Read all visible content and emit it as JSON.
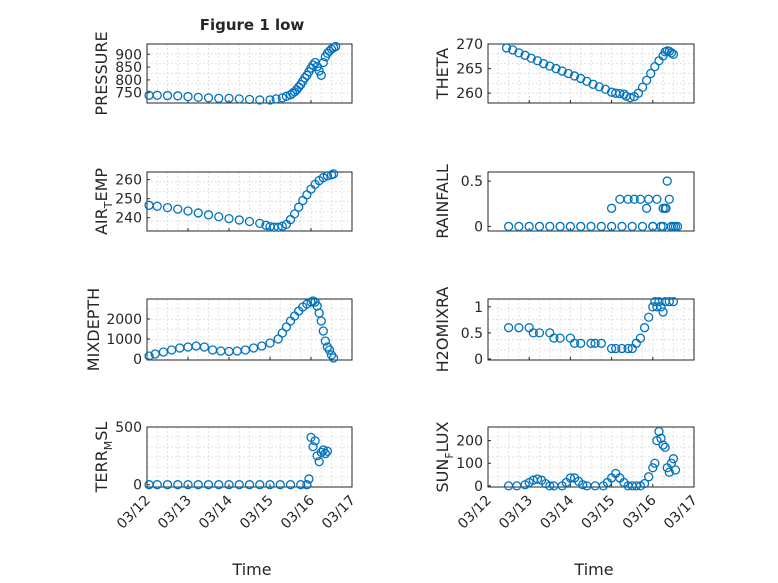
{
  "figure": {
    "title": "Figure 1 low",
    "xlabel": "Time"
  },
  "colors": {
    "marker": "#0072bd",
    "axis": "#262626",
    "grid": "#e0e0e0"
  },
  "x_ticks": [
    "03/12",
    "03/13",
    "03/14",
    "03/15",
    "03/16",
    "03/17"
  ],
  "chart_data": [
    {
      "type": "scatter",
      "id": "pressure",
      "ylabel": "PRESSURE",
      "ylabel_sub": "",
      "xlim": [
        0,
        5
      ],
      "ylim": [
        710,
        940
      ],
      "yticks": [
        750,
        800,
        850,
        900
      ],
      "grid": true,
      "series": [
        {
          "x": [
            0.05,
            0.25,
            0.5,
            0.75,
            1.0,
            1.25,
            1.5,
            1.75,
            2.0,
            2.25,
            2.5,
            2.75,
            3.0,
            3.15,
            3.3,
            3.4,
            3.5,
            3.55,
            3.6,
            3.65,
            3.7,
            3.75,
            3.8,
            3.85,
            3.9,
            3.95,
            4.0,
            4.05,
            4.1,
            4.15,
            4.2,
            4.25,
            4.3,
            4.35,
            4.4,
            4.45,
            4.5,
            4.55,
            4.6
          ],
          "y": [
            740,
            740,
            739,
            738,
            735,
            732,
            730,
            728,
            728,
            726,
            724,
            722,
            722,
            726,
            730,
            736,
            742,
            748,
            754,
            762,
            772,
            782,
            795,
            808,
            818,
            832,
            846,
            858,
            868,
            852,
            835,
            818,
            868,
            890,
            904,
            912,
            920,
            926,
            930
          ]
        }
      ]
    },
    {
      "type": "scatter",
      "id": "theta",
      "ylabel": "THETA",
      "ylabel_sub": "",
      "xlim": [
        0,
        5
      ],
      "ylim": [
        258,
        270
      ],
      "yticks": [
        260,
        265,
        270
      ],
      "grid": true,
      "series": [
        {
          "x": [
            0.45,
            0.6,
            0.75,
            0.9,
            1.05,
            1.2,
            1.35,
            1.5,
            1.65,
            1.8,
            1.95,
            2.1,
            2.25,
            2.4,
            2.55,
            2.7,
            2.85,
            3.0,
            3.1,
            3.2,
            3.3,
            3.35,
            3.45,
            3.55,
            3.65,
            3.75,
            3.85,
            3.95,
            4.05,
            4.15,
            4.25,
            4.3,
            4.35,
            4.4,
            4.45,
            4.5
          ],
          "y": [
            269.2,
            268.8,
            268.2,
            267.7,
            267.1,
            266.6,
            266.0,
            265.5,
            265.0,
            264.5,
            264.0,
            263.5,
            263.0,
            262.4,
            261.8,
            261.3,
            260.8,
            260.2,
            260.0,
            259.9,
            259.8,
            259.4,
            259.1,
            259.3,
            260.0,
            261.2,
            262.6,
            264.0,
            265.4,
            266.6,
            267.6,
            268.4,
            268.6,
            268.5,
            268.2,
            267.9
          ]
        }
      ]
    },
    {
      "type": "scatter",
      "id": "air_temp",
      "ylabel": "AIR",
      "ylabel_sub": "T",
      "ylabel_suffix": "EMP",
      "xlim": [
        0,
        5
      ],
      "ylim": [
        233,
        264
      ],
      "yticks": [
        240,
        250,
        260
      ],
      "grid": true,
      "series": [
        {
          "x": [
            0.05,
            0.25,
            0.5,
            0.75,
            1.0,
            1.25,
            1.5,
            1.75,
            2.0,
            2.25,
            2.5,
            2.75,
            2.9,
            3.0,
            3.1,
            3.2,
            3.3,
            3.4,
            3.5,
            3.6,
            3.7,
            3.8,
            3.9,
            4.0,
            4.1,
            4.2,
            4.3,
            4.4,
            4.5,
            4.55
          ],
          "y": [
            246.5,
            246.0,
            245.3,
            244.5,
            243.5,
            242.5,
            241.5,
            240.5,
            239.5,
            238.8,
            238.0,
            237.0,
            236.0,
            235.3,
            235.0,
            235.0,
            235.5,
            236.5,
            239.0,
            242.0,
            245.5,
            249.0,
            252.0,
            255.0,
            257.5,
            259.5,
            261.0,
            262.0,
            262.5,
            263.0
          ]
        }
      ]
    },
    {
      "type": "scatter",
      "id": "rainfall",
      "ylabel": "RAINFALL",
      "ylabel_sub": "",
      "xlim": [
        0,
        5
      ],
      "ylim": [
        -0.05,
        0.6
      ],
      "yticks": [
        0,
        0.5
      ],
      "grid": false,
      "series": [
        {
          "x": [
            0.5,
            0.75,
            1.0,
            1.25,
            1.5,
            1.75,
            2.0,
            2.25,
            2.5,
            2.75,
            3.0,
            3.25,
            3.5,
            3.75,
            4.0,
            4.25,
            4.5,
            3.0,
            3.2,
            3.4,
            3.55,
            3.7,
            3.9,
            4.1,
            4.25,
            4.3,
            4.35,
            4.4,
            3.85,
            4.0,
            4.2,
            4.32,
            4.45,
            4.55,
            4.6
          ],
          "y": [
            0,
            0,
            0,
            0,
            0,
            0,
            0,
            0,
            0,
            0,
            0,
            0,
            0,
            0,
            0,
            0,
            0,
            0.2,
            0.3,
            0.3,
            0.3,
            0.3,
            0.3,
            0.3,
            0.2,
            0.2,
            0.5,
            0.3,
            0.2,
            0,
            0,
            0.2,
            0,
            0,
            0
          ]
        }
      ]
    },
    {
      "type": "scatter",
      "id": "mixdepth",
      "ylabel": "MIXDEPTH",
      "ylabel_sub": "",
      "xlim": [
        0,
        5
      ],
      "ylim": [
        -50,
        3000
      ],
      "yticks": [
        0,
        1000,
        2000
      ],
      "grid": true,
      "series": [
        {
          "x": [
            0.05,
            0.2,
            0.4,
            0.6,
            0.8,
            1.0,
            1.2,
            1.4,
            1.6,
            1.8,
            2.0,
            2.2,
            2.4,
            2.6,
            2.8,
            3.0,
            3.2,
            3.3,
            3.4,
            3.5,
            3.6,
            3.7,
            3.8,
            3.9,
            4.0,
            4.05,
            4.1,
            4.15,
            4.2,
            4.25,
            4.3,
            4.35,
            4.4,
            4.45,
            4.5,
            4.55
          ],
          "y": [
            150,
            250,
            350,
            450,
            550,
            600,
            650,
            600,
            450,
            400,
            380,
            400,
            450,
            550,
            650,
            800,
            1000,
            1300,
            1600,
            1900,
            2150,
            2400,
            2600,
            2750,
            2850,
            2900,
            2850,
            2650,
            2300,
            1900,
            1400,
            900,
            600,
            450,
            200,
            50
          ]
        }
      ]
    },
    {
      "type": "scatter",
      "id": "h2omixra",
      "ylabel": "H2OMIXRA",
      "ylabel_sub": "",
      "xlim": [
        0,
        5
      ],
      "ylim": [
        -0.02,
        1.15
      ],
      "yticks": [
        0,
        0.5,
        1
      ],
      "grid": true,
      "series": [
        {
          "x": [
            0.5,
            0.75,
            1.0,
            1.1,
            1.25,
            1.5,
            1.6,
            1.75,
            2.0,
            2.1,
            2.25,
            2.5,
            2.6,
            2.75,
            3.0,
            3.1,
            3.25,
            3.4,
            3.5,
            3.6,
            3.7,
            3.8,
            3.9,
            4.0,
            4.05,
            4.1,
            4.15,
            4.2,
            4.25,
            4.3,
            4.4,
            4.5
          ],
          "y": [
            0.6,
            0.6,
            0.6,
            0.5,
            0.5,
            0.5,
            0.4,
            0.4,
            0.4,
            0.3,
            0.3,
            0.3,
            0.3,
            0.3,
            0.2,
            0.2,
            0.2,
            0.2,
            0.2,
            0.3,
            0.4,
            0.6,
            0.8,
            1.0,
            1.1,
            1.0,
            1.1,
            1.0,
            0.9,
            1.1,
            1.1,
            1.1
          ]
        }
      ]
    },
    {
      "type": "scatter",
      "id": "terr_msl",
      "ylabel": "TERR",
      "ylabel_sub": "M",
      "ylabel_suffix": "SL",
      "xlim": [
        0,
        5
      ],
      "ylim": [
        -20,
        500
      ],
      "yticks": [
        0,
        500
      ],
      "grid": true,
      "series": [
        {
          "x": [
            0.05,
            0.25,
            0.5,
            0.75,
            1.0,
            1.25,
            1.5,
            1.75,
            2.0,
            2.25,
            2.5,
            2.75,
            3.0,
            3.25,
            3.5,
            3.75,
            3.9,
            3.95,
            4.0,
            4.05,
            4.1,
            4.15,
            4.2,
            4.25,
            4.3,
            4.35,
            4.4
          ],
          "y": [
            0,
            0,
            0,
            0,
            0,
            0,
            0,
            0,
            0,
            0,
            0,
            0,
            0,
            0,
            0,
            0,
            0,
            50,
            410,
            330,
            380,
            250,
            200,
            280,
            300,
            270,
            290
          ]
        }
      ]
    },
    {
      "type": "scatter",
      "id": "sun_flux",
      "ylabel": "SUN",
      "ylabel_sub": "F",
      "ylabel_suffix": "LUX",
      "xlim": [
        0,
        5
      ],
      "ylim": [
        -5,
        260
      ],
      "yticks": [
        0,
        100,
        200
      ],
      "grid": true,
      "series": [
        {
          "x": [
            0.5,
            0.7,
            0.9,
            1.0,
            1.1,
            1.2,
            1.3,
            1.4,
            1.5,
            1.6,
            1.8,
            1.9,
            2.0,
            2.1,
            2.2,
            2.3,
            2.4,
            2.6,
            2.8,
            2.9,
            3.0,
            3.1,
            3.2,
            3.3,
            3.4,
            3.5,
            3.6,
            3.7,
            3.8,
            3.9,
            4.0,
            4.05,
            4.1,
            4.15,
            4.2,
            4.25,
            4.3,
            4.35,
            4.4,
            4.45,
            4.5,
            4.55
          ],
          "y": [
            0,
            0,
            5,
            15,
            25,
            30,
            25,
            10,
            0,
            0,
            0,
            15,
            35,
            35,
            20,
            5,
            0,
            0,
            0,
            15,
            35,
            55,
            35,
            15,
            0,
            0,
            0,
            0,
            10,
            40,
            80,
            100,
            200,
            240,
            210,
            180,
            170,
            80,
            60,
            100,
            120,
            70
          ]
        }
      ]
    }
  ]
}
